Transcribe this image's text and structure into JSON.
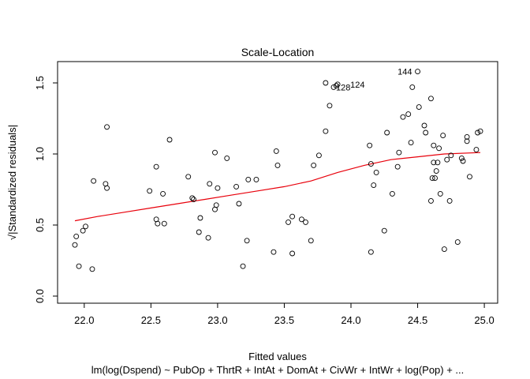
{
  "chart_data": {
    "type": "scatter",
    "title": "Scale-Location",
    "xlabel": "Fitted values",
    "subtitle": "lm(log(Dspend) ~ PubOp + ThrtR + IntAt + DomAt + CivWr + IntWr + log(Pop) + ...",
    "ylabel": "√|Standardized residuals|",
    "xlim": [
      21.8,
      25.1
    ],
    "ylim": [
      -0.05,
      1.65
    ],
    "x_ticks": [
      22.0,
      22.5,
      23.0,
      23.5,
      24.0,
      24.5,
      25.0
    ],
    "x_tick_labels": [
      "22.0",
      "22.5",
      "23.0",
      "23.5",
      "24.0",
      "24.5",
      "25.0"
    ],
    "y_ticks": [
      0.0,
      0.5,
      1.0,
      1.5
    ],
    "y_tick_labels": [
      "0.0",
      "0.5",
      "1.0",
      "1.5"
    ],
    "grid": false,
    "colors": {
      "points": "#000000",
      "smoother": "#e8000b",
      "frame": "#000000"
    },
    "points": [
      {
        "x": 21.93,
        "y": 0.36
      },
      {
        "x": 21.94,
        "y": 0.42
      },
      {
        "x": 21.96,
        "y": 0.21
      },
      {
        "x": 21.99,
        "y": 0.46
      },
      {
        "x": 22.01,
        "y": 0.49
      },
      {
        "x": 22.06,
        "y": 0.19
      },
      {
        "x": 22.07,
        "y": 0.81
      },
      {
        "x": 22.16,
        "y": 0.79
      },
      {
        "x": 22.17,
        "y": 0.76
      },
      {
        "x": 22.17,
        "y": 1.19
      },
      {
        "x": 22.49,
        "y": 0.74
      },
      {
        "x": 22.54,
        "y": 0.91
      },
      {
        "x": 22.54,
        "y": 0.54
      },
      {
        "x": 22.55,
        "y": 0.51
      },
      {
        "x": 22.59,
        "y": 0.72
      },
      {
        "x": 22.6,
        "y": 0.51
      },
      {
        "x": 22.64,
        "y": 1.1
      },
      {
        "x": 22.78,
        "y": 0.84
      },
      {
        "x": 22.81,
        "y": 0.69
      },
      {
        "x": 22.82,
        "y": 0.68
      },
      {
        "x": 22.86,
        "y": 0.45
      },
      {
        "x": 22.87,
        "y": 0.55
      },
      {
        "x": 22.93,
        "y": 0.41
      },
      {
        "x": 22.94,
        "y": 0.79
      },
      {
        "x": 22.98,
        "y": 0.61
      },
      {
        "x": 22.98,
        "y": 1.01
      },
      {
        "x": 22.99,
        "y": 0.64
      },
      {
        "x": 23.0,
        "y": 0.76
      },
      {
        "x": 23.07,
        "y": 0.97
      },
      {
        "x": 23.14,
        "y": 0.77
      },
      {
        "x": 23.16,
        "y": 0.65
      },
      {
        "x": 23.19,
        "y": 0.21
      },
      {
        "x": 23.22,
        "y": 0.39
      },
      {
        "x": 23.23,
        "y": 0.82
      },
      {
        "x": 23.29,
        "y": 0.82
      },
      {
        "x": 23.42,
        "y": 0.31
      },
      {
        "x": 23.44,
        "y": 1.02
      },
      {
        "x": 23.45,
        "y": 0.92
      },
      {
        "x": 23.53,
        "y": 0.52
      },
      {
        "x": 23.56,
        "y": 0.56
      },
      {
        "x": 23.56,
        "y": 0.3
      },
      {
        "x": 23.63,
        "y": 0.54
      },
      {
        "x": 23.66,
        "y": 0.52
      },
      {
        "x": 23.7,
        "y": 0.39
      },
      {
        "x": 23.72,
        "y": 0.92
      },
      {
        "x": 23.76,
        "y": 0.99
      },
      {
        "x": 23.81,
        "y": 1.16
      },
      {
        "x": 23.81,
        "y": 1.5
      },
      {
        "x": 23.84,
        "y": 1.34
      },
      {
        "x": 23.87,
        "y": 1.47
      },
      {
        "x": 23.89,
        "y": 1.48
      },
      {
        "x": 23.9,
        "y": 1.49
      },
      {
        "x": 24.14,
        "y": 1.06
      },
      {
        "x": 24.15,
        "y": 0.93
      },
      {
        "x": 24.15,
        "y": 0.31
      },
      {
        "x": 24.17,
        "y": 0.78
      },
      {
        "x": 24.19,
        "y": 0.87
      },
      {
        "x": 24.25,
        "y": 0.46
      },
      {
        "x": 24.27,
        "y": 1.15
      },
      {
        "x": 24.31,
        "y": 0.72
      },
      {
        "x": 24.35,
        "y": 0.91
      },
      {
        "x": 24.36,
        "y": 1.01
      },
      {
        "x": 24.39,
        "y": 1.26
      },
      {
        "x": 24.43,
        "y": 1.28
      },
      {
        "x": 24.45,
        "y": 1.08
      },
      {
        "x": 24.46,
        "y": 1.47
      },
      {
        "x": 24.5,
        "y": 1.58
      },
      {
        "x": 24.51,
        "y": 1.33
      },
      {
        "x": 24.55,
        "y": 1.2
      },
      {
        "x": 24.56,
        "y": 1.15
      },
      {
        "x": 24.6,
        "y": 1.39
      },
      {
        "x": 24.6,
        "y": 0.67
      },
      {
        "x": 24.61,
        "y": 0.83
      },
      {
        "x": 24.62,
        "y": 0.94
      },
      {
        "x": 24.62,
        "y": 1.06
      },
      {
        "x": 24.63,
        "y": 0.83
      },
      {
        "x": 24.64,
        "y": 0.88
      },
      {
        "x": 24.65,
        "y": 0.94
      },
      {
        "x": 24.66,
        "y": 1.04
      },
      {
        "x": 24.67,
        "y": 0.72
      },
      {
        "x": 24.69,
        "y": 1.13
      },
      {
        "x": 24.7,
        "y": 0.33
      },
      {
        "x": 24.72,
        "y": 0.96
      },
      {
        "x": 24.74,
        "y": 0.67
      },
      {
        "x": 24.75,
        "y": 0.99
      },
      {
        "x": 24.8,
        "y": 0.38
      },
      {
        "x": 24.83,
        "y": 0.97
      },
      {
        "x": 24.84,
        "y": 0.95
      },
      {
        "x": 24.87,
        "y": 1.12
      },
      {
        "x": 24.87,
        "y": 1.09
      },
      {
        "x": 24.89,
        "y": 0.84
      },
      {
        "x": 24.94,
        "y": 1.03
      },
      {
        "x": 24.95,
        "y": 1.15
      },
      {
        "x": 24.97,
        "y": 1.16
      }
    ],
    "smoother": [
      {
        "x": 21.93,
        "y": 0.53
      },
      {
        "x": 22.1,
        "y": 0.56
      },
      {
        "x": 22.3,
        "y": 0.59
      },
      {
        "x": 22.5,
        "y": 0.62
      },
      {
        "x": 22.7,
        "y": 0.65
      },
      {
        "x": 22.9,
        "y": 0.68
      },
      {
        "x": 23.1,
        "y": 0.71
      },
      {
        "x": 23.3,
        "y": 0.74
      },
      {
        "x": 23.5,
        "y": 0.77
      },
      {
        "x": 23.7,
        "y": 0.81
      },
      {
        "x": 23.9,
        "y": 0.87
      },
      {
        "x": 24.1,
        "y": 0.92
      },
      {
        "x": 24.3,
        "y": 0.96
      },
      {
        "x": 24.5,
        "y": 0.98
      },
      {
        "x": 24.7,
        "y": 1.0
      },
      {
        "x": 24.97,
        "y": 1.01
      }
    ],
    "annotations": [
      {
        "text": "144",
        "x": 24.5,
        "y": 1.58,
        "side": "left"
      },
      {
        "text": "128",
        "x": 23.87,
        "y": 1.47,
        "side": "right"
      },
      {
        "text": "124",
        "x": 23.9,
        "y": 1.49,
        "side": "right"
      }
    ]
  }
}
